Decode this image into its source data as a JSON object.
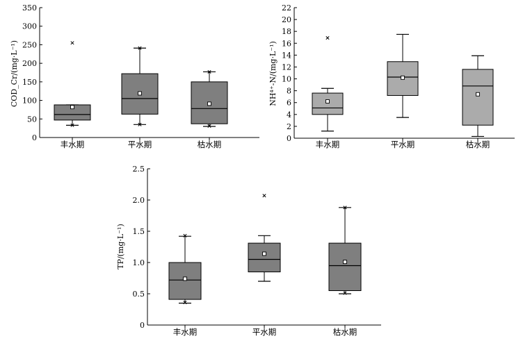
{
  "chart_data": [
    {
      "id": "cod",
      "type": "box",
      "ylabel": "COD_Cr/(mg·L⁻¹)",
      "ylim": [
        0,
        350
      ],
      "yticks": [
        0,
        50,
        100,
        150,
        200,
        250,
        300,
        350
      ],
      "categories": [
        "丰水期",
        "平水期",
        "枯水期"
      ],
      "boxes": [
        {
          "min": 33,
          "q1": 47,
          "median": 62,
          "q3": 88,
          "max": 88,
          "mean": 82,
          "lower_marker": 33,
          "upper_marker": null,
          "outliers": [
            255
          ]
        },
        {
          "min": 35,
          "q1": 63,
          "median": 105,
          "q3": 172,
          "max": 241,
          "mean": 119,
          "lower_marker": 35,
          "upper_marker": 241,
          "outliers": []
        },
        {
          "min": 30,
          "q1": 37,
          "median": 78,
          "q3": 150,
          "max": 177,
          "mean": 91,
          "lower_marker": 31,
          "upper_marker": 177,
          "outliers": []
        }
      ]
    },
    {
      "id": "nh",
      "type": "box",
      "ylabel": "NH⁴⁺-N/(mg·L⁻¹)",
      "ylim": [
        0,
        22
      ],
      "yticks": [
        0,
        2,
        4,
        6,
        8,
        10,
        12,
        14,
        16,
        18,
        20,
        22
      ],
      "categories": [
        "丰水期",
        "平水期",
        "枯水期"
      ],
      "boxes": [
        {
          "min": 1.2,
          "q1": 4.0,
          "median": 5.1,
          "q3": 7.6,
          "max": 8.4,
          "mean": 6.2,
          "lower_marker": null,
          "upper_marker": null,
          "outliers": [
            16.9
          ]
        },
        {
          "min": 3.5,
          "q1": 7.2,
          "median": 10.3,
          "q3": 12.9,
          "max": 17.5,
          "mean": 10.2,
          "lower_marker": null,
          "upper_marker": null,
          "outliers": []
        },
        {
          "min": 0.3,
          "q1": 2.2,
          "median": 8.8,
          "q3": 11.6,
          "max": 13.9,
          "mean": 7.4,
          "lower_marker": null,
          "upper_marker": null,
          "outliers": []
        }
      ]
    },
    {
      "id": "tp",
      "type": "box",
      "ylabel": "TP/(mg·L⁻¹)",
      "ylim": [
        0,
        2.5
      ],
      "yticks": [
        "0",
        "0.5",
        "1.0",
        "1.5",
        "2.0",
        "2.5"
      ],
      "categories": [
        "丰水期",
        "平水期",
        "枯水期"
      ],
      "boxes": [
        {
          "min": 0.35,
          "q1": 0.41,
          "median": 0.72,
          "q3": 1.0,
          "max": 1.42,
          "mean": 0.74,
          "lower_marker": 0.36,
          "upper_marker": 1.43,
          "outliers": []
        },
        {
          "min": 0.7,
          "q1": 0.85,
          "median": 1.05,
          "q3": 1.31,
          "max": 1.43,
          "mean": 1.14,
          "lower_marker": null,
          "upper_marker": null,
          "outliers": [
            2.07
          ]
        },
        {
          "min": 0.5,
          "q1": 0.55,
          "median": 0.95,
          "q3": 1.31,
          "max": 1.88,
          "mean": 1.01,
          "lower_marker": 0.51,
          "upper_marker": 1.88,
          "outliers": []
        }
      ]
    }
  ],
  "colors": {
    "box_dark": "#7f7f7f",
    "box_light": "#ababab",
    "stroke": "#000000"
  }
}
